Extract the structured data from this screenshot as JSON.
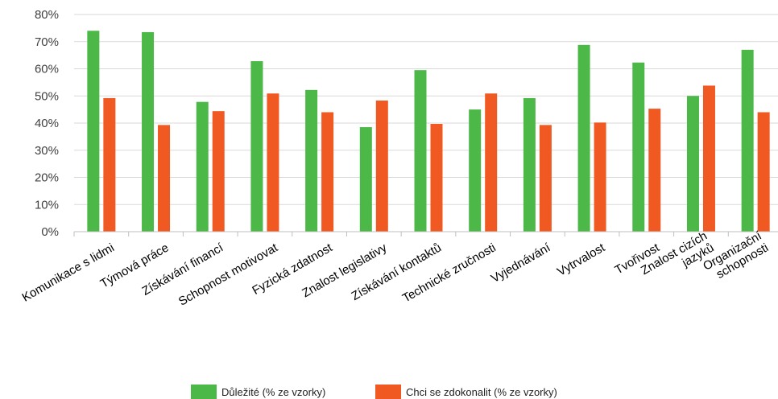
{
  "chart_data": {
    "type": "bar",
    "categories": [
      [
        "Komunikace s lidmi"
      ],
      [
        "Týmová práce"
      ],
      [
        "Získávání financí"
      ],
      [
        "Schopnost motivovat"
      ],
      [
        "Fyzická zdatnost"
      ],
      [
        "Znalost legislativy"
      ],
      [
        "Získávání kontaktů"
      ],
      [
        "Technické zručnosti"
      ],
      [
        "Vyjednávání"
      ],
      [
        "Vytrvalost"
      ],
      [
        "Tvořivost"
      ],
      [
        "Znalost cizích",
        "jazyků"
      ],
      [
        "Organizační",
        "schopnosti"
      ]
    ],
    "series": [
      {
        "name": "Důležité (% ze vzorky)",
        "color": "#4cb848",
        "values": [
          74,
          73.5,
          47.8,
          62.8,
          52.2,
          38.5,
          59.5,
          45,
          49.2,
          68.8,
          62.3,
          50,
          67
        ]
      },
      {
        "name": "Chci se zdokonalit (% ze vzorky)",
        "color": "#f05a22",
        "values": [
          49.2,
          39.3,
          44.4,
          50.9,
          44,
          48.3,
          39.7,
          50.9,
          39.3,
          40.2,
          45.3,
          53.8,
          44
        ]
      }
    ],
    "y_ticks": [
      "0%",
      "10%",
      "20%",
      "30%",
      "40%",
      "50%",
      "60%",
      "70%",
      "80%"
    ],
    "ylim": [
      0,
      80
    ],
    "grid": true,
    "legend_position": "bottom"
  }
}
